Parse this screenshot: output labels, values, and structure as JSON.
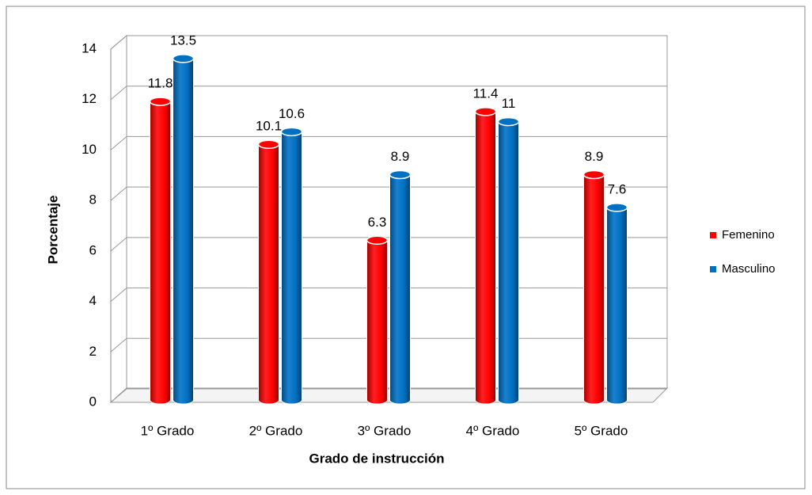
{
  "chart_data": {
    "type": "bar",
    "categories": [
      "1º Grado",
      "2º Grado",
      "3º Grado",
      "4º Grado",
      "5º Grado"
    ],
    "series": [
      {
        "name": "Femenino",
        "color": "#ff0000",
        "values": [
          11.8,
          10.1,
          6.3,
          11.4,
          8.9
        ]
      },
      {
        "name": "Masculino",
        "color": "#0070c0",
        "values": [
          13.5,
          10.6,
          8.9,
          11,
          7.6
        ]
      }
    ],
    "ylabel": "Porcentaje",
    "xlabel": "Grado de instrucción",
    "ylim": [
      0,
      14
    ],
    "yticks": [
      0,
      2,
      4,
      6,
      8,
      10,
      12,
      14
    ],
    "grid": true,
    "legend": "right"
  }
}
